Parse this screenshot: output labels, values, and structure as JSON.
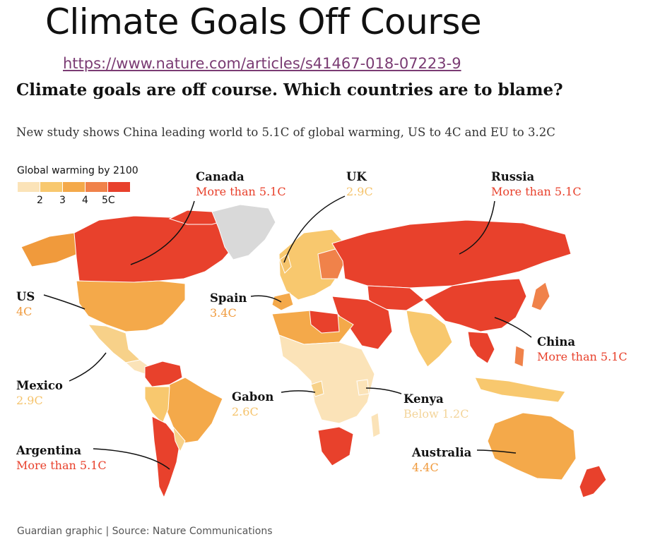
{
  "slide": {
    "title": "Climate Goals Off Course",
    "link": "https://www.nature.com/articles/s41467-018-07223-9"
  },
  "graphic": {
    "headline": "Climate goals are off course. Which countries are to blame?",
    "standfirst": "New study shows China leading world to 5.1C of global warming, US to 4C and EU to 3.2C",
    "source": "Guardian graphic | Source: Nature Communications"
  },
  "legend": {
    "title": "Global warming by 2100",
    "ticks": [
      "2",
      "3",
      "4",
      "5C"
    ],
    "colors": [
      "#fbe3b8",
      "#f8c86e",
      "#f4a94a",
      "#f0824a",
      "#e8412c"
    ]
  },
  "colors": {
    "more_than_5_1": "#e8412c",
    "about_4": "#f09a3c",
    "about_3": "#f5c36b",
    "about_2_5": "#f7d189",
    "below_2": "#fbe3b8",
    "no_data": "#d9d9d9"
  },
  "callouts": {
    "canada": {
      "name": "Canada",
      "value": "More than 5.1C",
      "level": "more than 5.1"
    },
    "uk": {
      "name": "UK",
      "value": "2.9C",
      "level": "about 3"
    },
    "russia": {
      "name": "Russia",
      "value": "More than 5.1C",
      "level": "more than 5.1"
    },
    "us": {
      "name": "US",
      "value": "4C",
      "level": "about 4"
    },
    "spain": {
      "name": "Spain",
      "value": "3.4C",
      "level": "about 3"
    },
    "china": {
      "name": "China",
      "value": "More than 5.1C",
      "level": "more than 5.1"
    },
    "mexico": {
      "name": "Mexico",
      "value": "2.9C",
      "level": "about 3"
    },
    "gabon": {
      "name": "Gabon",
      "value": "2.6C",
      "level": "about 2.5"
    },
    "kenya": {
      "name": "Kenya",
      "value": "Below 1.2C",
      "level": "below 2"
    },
    "argentina": {
      "name": "Argentina",
      "value": "More than 5.1C",
      "level": "more than 5.1"
    },
    "australia": {
      "name": "Australia",
      "value": "4.4C",
      "level": "about 4"
    }
  }
}
